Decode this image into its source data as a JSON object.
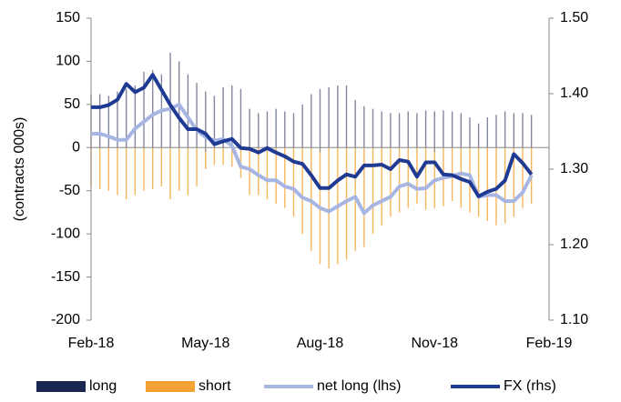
{
  "chart_data": {
    "type": "bar-line",
    "y_label": "(contracts 000s)",
    "categories": [
      "Feb-18",
      null,
      null,
      null,
      null,
      null,
      null,
      null,
      null,
      null,
      null,
      null,
      null,
      "May-18",
      null,
      null,
      null,
      null,
      null,
      null,
      null,
      null,
      null,
      null,
      null,
      null,
      "Aug-18",
      null,
      null,
      null,
      null,
      null,
      null,
      null,
      null,
      null,
      null,
      null,
      null,
      "Nov-18",
      null,
      null,
      null,
      null,
      null,
      null,
      null,
      null,
      null,
      null,
      null,
      null,
      "Feb-19"
    ],
    "series": [
      {
        "name": "long",
        "color": "#1b2552",
        "kind": "bar",
        "axis": "y",
        "values": [
          62,
          62,
          60,
          65,
          68,
          72,
          88,
          90,
          85,
          110,
          100,
          85,
          75,
          65,
          60,
          70,
          72,
          68,
          45,
          40,
          42,
          45,
          42,
          40,
          50,
          62,
          68,
          70,
          72,
          72,
          55,
          48,
          45,
          42,
          40,
          40,
          42,
          40,
          43,
          42,
          43,
          42,
          40,
          35,
          28,
          35,
          38,
          42,
          40,
          40,
          38,
          null,
          null
        ]
      },
      {
        "name": "short",
        "color": "#f5a235",
        "kind": "bar",
        "axis": "y",
        "values": [
          -45,
          -48,
          -50,
          -55,
          -60,
          -55,
          -50,
          -48,
          -45,
          -60,
          -50,
          -55,
          -45,
          -25,
          -20,
          -20,
          -22,
          -35,
          -55,
          -55,
          -60,
          -65,
          -70,
          -80,
          -100,
          -120,
          -135,
          -140,
          -135,
          -130,
          -120,
          -115,
          -100,
          -90,
          -80,
          -75,
          -70,
          -65,
          -72,
          -70,
          -68,
          -62,
          -70,
          -75,
          -80,
          -85,
          -90,
          -88,
          -80,
          -70,
          -65,
          null,
          null
        ]
      },
      {
        "name": "net long (lhs)",
        "color": "#a6b5e2",
        "kind": "line",
        "axis": "y",
        "values": [
          16,
          16,
          13,
          9,
          9,
          22,
          30,
          38,
          43,
          45,
          50,
          35,
          20,
          12,
          8,
          10,
          2,
          -22,
          -25,
          -32,
          -38,
          -38,
          -45,
          -48,
          -58,
          -62,
          -70,
          -74,
          -68,
          -62,
          -57,
          -76,
          -67,
          -62,
          -57,
          -45,
          -42,
          -48,
          -47,
          -38,
          -35,
          -33,
          -30,
          -32,
          -57,
          -55,
          -55,
          -62,
          -62,
          -52,
          -32,
          null,
          null
        ]
      },
      {
        "name": "FX (rhs)",
        "color": "#1f3a93",
        "kind": "line",
        "axis": "y2",
        "values": [
          1.382,
          1.382,
          1.385,
          1.392,
          1.413,
          1.402,
          1.408,
          1.425,
          1.405,
          1.385,
          1.368,
          1.353,
          1.353,
          1.347,
          1.333,
          1.337,
          1.34,
          1.328,
          1.327,
          1.322,
          1.328,
          1.322,
          1.317,
          1.31,
          1.307,
          1.292,
          1.275,
          1.275,
          1.285,
          1.293,
          1.29,
          1.305,
          1.305,
          1.306,
          1.3,
          1.312,
          1.31,
          1.29,
          1.309,
          1.309,
          1.293,
          1.292,
          1.287,
          1.283,
          1.264,
          1.27,
          1.274,
          1.285,
          1.32,
          1.308,
          1.293,
          null,
          null
        ]
      }
    ],
    "ylim": [
      -200,
      150
    ],
    "yticks": [
      -200,
      -150,
      -100,
      -50,
      0,
      50,
      100,
      150
    ],
    "y2lim": [
      1.1,
      1.5
    ],
    "y2ticks": [
      {
        "value": 1.1,
        "label": "1.10"
      },
      {
        "value": 1.2,
        "label": "1.20"
      },
      {
        "value": 1.3,
        "label": "1.30"
      },
      {
        "value": 1.4,
        "label": "1.40"
      },
      {
        "value": 1.5,
        "label": "1.50"
      }
    ],
    "legend": "bottom"
  }
}
